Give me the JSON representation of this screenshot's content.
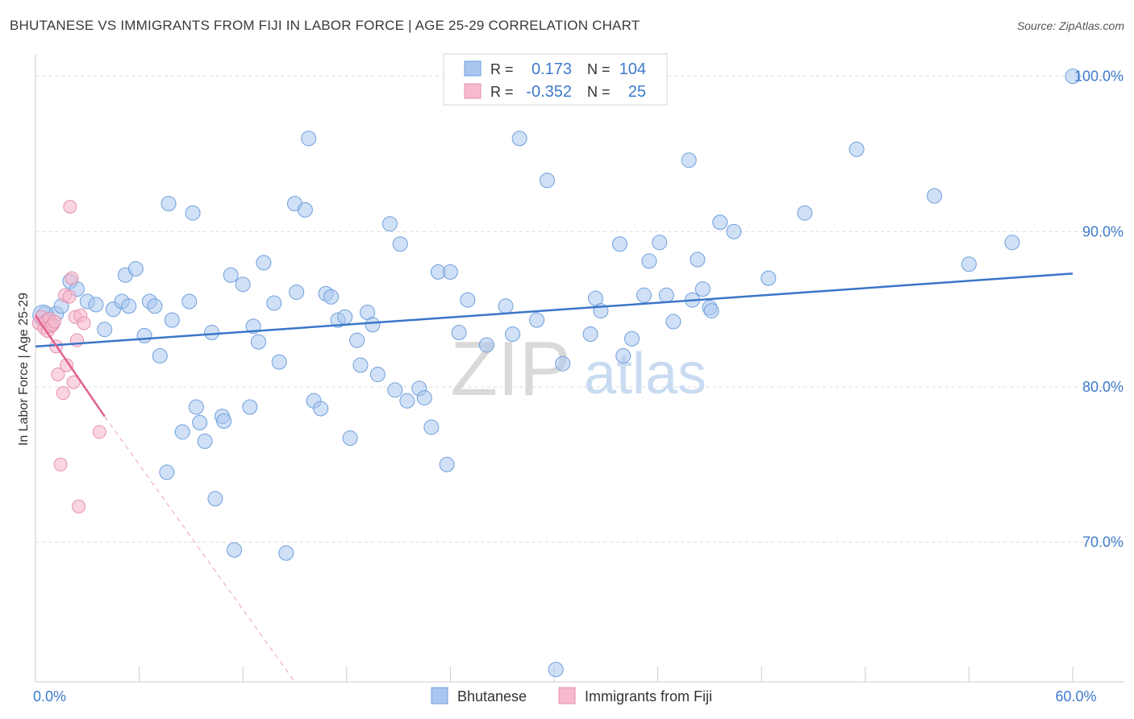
{
  "header": {
    "title": "BHUTANESE VS IMMIGRANTS FROM FIJI IN LABOR FORCE | AGE 25-29 CORRELATION CHART",
    "source": "Source: ZipAtlas.com"
  },
  "colors": {
    "blue": "#3a76c9",
    "blue_fill": "#a9c6ef",
    "pink": "#e0628f",
    "pink_fill": "#f6b9cd",
    "tick_label": "#3d7acc",
    "grid": "#dcdcdc"
  },
  "watermark": {
    "zip": "ZIP",
    "atlas": "atlas"
  },
  "chart_data": {
    "type": "scatter",
    "title": "BHUTANESE VS IMMIGRANTS FROM FIJI IN LABOR FORCE | AGE 25-29 CORRELATION CHART",
    "xlabel": "",
    "ylabel": "In Labor Force | Age 25-29",
    "xlim": [
      0,
      60
    ],
    "ylim": [
      61,
      101.8
    ],
    "x_tick_labels": [
      {
        "value": 0,
        "label": "0.0%"
      },
      {
        "value": 60,
        "label": "60.0%"
      }
    ],
    "y_tick_labels": [
      {
        "value": 70,
        "label": "70.0%"
      },
      {
        "value": 80,
        "label": "80.0%"
      },
      {
        "value": 90,
        "label": "90.0%"
      },
      {
        "value": 100,
        "label": "100.0%"
      }
    ],
    "legend_position": "top-center",
    "legend": [
      {
        "series": "Bhutanese",
        "r_label": "R =",
        "r_value": "0.173",
        "n_label": "N =",
        "n_value": "104"
      },
      {
        "series": "Immigrants from Fiji",
        "r_label": "R =",
        "r_value": "-0.352",
        "n_label": "N =",
        "n_value": "25"
      }
    ],
    "series": [
      {
        "name": "Bhutanese",
        "color": "#3a76c9",
        "trend": {
          "x": [
            0,
            60
          ],
          "y": [
            82.6,
            87.3
          ]
        },
        "points": [
          [
            0.5,
            84.7
          ],
          [
            0.7,
            84.3
          ],
          [
            0.9,
            84.0
          ],
          [
            1.2,
            84.7
          ],
          [
            1.5,
            85.2
          ],
          [
            2.0,
            86.8
          ],
          [
            2.4,
            86.3
          ],
          [
            3.0,
            85.5
          ],
          [
            3.5,
            85.3
          ],
          [
            4.0,
            83.7
          ],
          [
            4.5,
            85.0
          ],
          [
            5.0,
            85.5
          ],
          [
            5.2,
            87.2
          ],
          [
            5.4,
            85.2
          ],
          [
            5.8,
            87.6
          ],
          [
            6.3,
            83.3
          ],
          [
            6.6,
            85.5
          ],
          [
            6.9,
            85.2
          ],
          [
            7.2,
            82.0
          ],
          [
            7.6,
            74.5
          ],
          [
            7.7,
            91.8
          ],
          [
            7.9,
            84.3
          ],
          [
            8.5,
            77.1
          ],
          [
            8.9,
            85.5
          ],
          [
            9.1,
            91.2
          ],
          [
            9.3,
            78.7
          ],
          [
            9.5,
            77.7
          ],
          [
            9.8,
            76.5
          ],
          [
            10.2,
            83.5
          ],
          [
            10.4,
            72.8
          ],
          [
            10.8,
            78.1
          ],
          [
            10.9,
            77.8
          ],
          [
            11.3,
            87.2
          ],
          [
            11.5,
            69.5
          ],
          [
            12.0,
            86.6
          ],
          [
            12.4,
            78.7
          ],
          [
            12.6,
            83.9
          ],
          [
            12.9,
            82.9
          ],
          [
            13.2,
            88.0
          ],
          [
            13.8,
            85.4
          ],
          [
            14.1,
            81.6
          ],
          [
            14.5,
            69.3
          ],
          [
            15.0,
            91.8
          ],
          [
            15.1,
            86.1
          ],
          [
            15.6,
            91.4
          ],
          [
            15.8,
            96.0
          ],
          [
            16.1,
            79.1
          ],
          [
            16.5,
            78.6
          ],
          [
            16.8,
            86.0
          ],
          [
            17.1,
            85.8
          ],
          [
            17.5,
            84.3
          ],
          [
            17.9,
            84.5
          ],
          [
            18.2,
            76.7
          ],
          [
            18.6,
            83.0
          ],
          [
            18.8,
            81.4
          ],
          [
            19.2,
            84.8
          ],
          [
            19.5,
            84.0
          ],
          [
            19.8,
            80.8
          ],
          [
            20.5,
            90.5
          ],
          [
            20.8,
            79.8
          ],
          [
            21.1,
            89.2
          ],
          [
            21.5,
            79.1
          ],
          [
            22.2,
            79.9
          ],
          [
            22.5,
            79.3
          ],
          [
            22.9,
            77.4
          ],
          [
            23.3,
            87.4
          ],
          [
            23.8,
            75.0
          ],
          [
            24.0,
            87.4
          ],
          [
            24.5,
            83.5
          ],
          [
            25.0,
            85.6
          ],
          [
            26.1,
            82.7
          ],
          [
            27.2,
            85.2
          ],
          [
            27.6,
            83.4
          ],
          [
            28.0,
            96.0
          ],
          [
            29.0,
            84.3
          ],
          [
            29.6,
            93.3
          ],
          [
            30.1,
            61.8
          ],
          [
            30.5,
            81.5
          ],
          [
            32.1,
            83.4
          ],
          [
            32.4,
            85.7
          ],
          [
            32.7,
            84.9
          ],
          [
            33.8,
            89.2
          ],
          [
            34.0,
            82.0
          ],
          [
            34.5,
            83.1
          ],
          [
            35.2,
            85.9
          ],
          [
            35.5,
            88.1
          ],
          [
            36.1,
            89.3
          ],
          [
            36.5,
            85.9
          ],
          [
            36.9,
            84.2
          ],
          [
            37.8,
            94.6
          ],
          [
            38.0,
            85.6
          ],
          [
            38.3,
            88.2
          ],
          [
            38.6,
            86.3
          ],
          [
            39.0,
            85.1
          ],
          [
            39.1,
            84.9
          ],
          [
            39.6,
            90.6
          ],
          [
            40.4,
            90.0
          ],
          [
            42.4,
            87.0
          ],
          [
            44.5,
            91.2
          ],
          [
            47.5,
            95.3
          ],
          [
            52.0,
            92.3
          ],
          [
            54.0,
            87.9
          ],
          [
            56.5,
            89.3
          ],
          [
            60.0,
            100.0
          ]
        ]
      },
      {
        "name": "Immigrants from Fiji",
        "color": "#e0628f",
        "trend_solid": {
          "x": [
            0,
            4.0
          ],
          "y": [
            84.6,
            78.1
          ]
        },
        "trend_dashed": {
          "x": [
            4.0,
            15.0
          ],
          "y": [
            78.1,
            61.0
          ]
        },
        "points": [
          [
            0.2,
            84.1
          ],
          [
            0.35,
            84.5
          ],
          [
            0.5,
            83.8
          ],
          [
            0.6,
            84.2
          ],
          [
            0.7,
            83.6
          ],
          [
            0.8,
            84.4
          ],
          [
            0.9,
            83.9
          ],
          [
            1.0,
            84.0
          ],
          [
            1.1,
            84.2
          ],
          [
            1.2,
            82.6
          ],
          [
            1.3,
            80.8
          ],
          [
            1.45,
            75.0
          ],
          [
            1.6,
            79.6
          ],
          [
            1.7,
            85.9
          ],
          [
            1.8,
            81.4
          ],
          [
            1.95,
            85.8
          ],
          [
            2.0,
            91.6
          ],
          [
            2.1,
            87.0
          ],
          [
            2.2,
            80.3
          ],
          [
            2.3,
            84.5
          ],
          [
            2.4,
            83.0
          ],
          [
            2.5,
            72.3
          ],
          [
            2.6,
            84.6
          ],
          [
            2.8,
            84.1
          ],
          [
            3.7,
            77.1
          ]
        ]
      }
    ]
  }
}
